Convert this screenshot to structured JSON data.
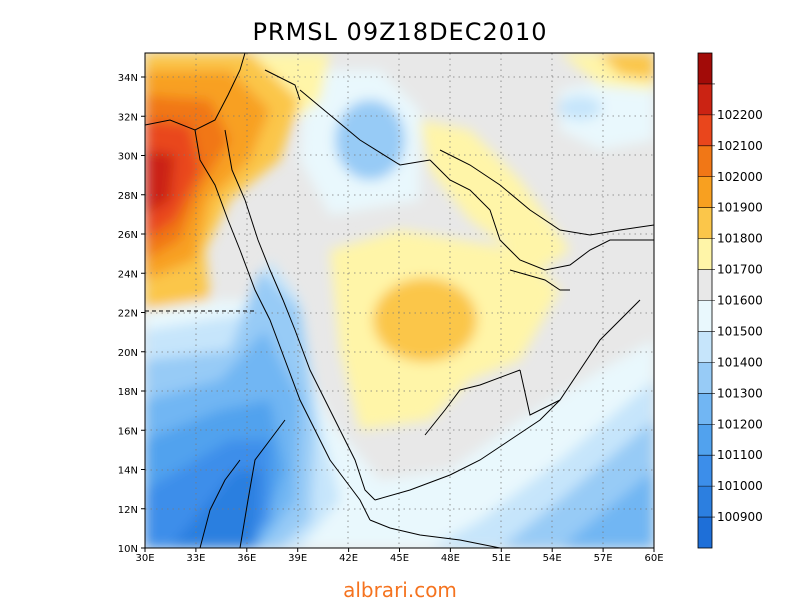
{
  "title": "PRMSL 09Z18DEC2010",
  "watermark": "albrari.com",
  "lat_ticks": [
    "10N",
    "12N",
    "14N",
    "16N",
    "18N",
    "20N",
    "22N",
    "24N",
    "26N",
    "28N",
    "30N",
    "32N",
    "34N"
  ],
  "lon_ticks": [
    "30E",
    "33E",
    "36E",
    "39E",
    "42E",
    "45E",
    "48E",
    "51E",
    "54E",
    "57E",
    "60E"
  ],
  "colorbar": [
    {
      "label": "",
      "color": "#1e6fd8"
    },
    {
      "label": "100900",
      "color": "#2c7fe0"
    },
    {
      "label": "101000",
      "color": "#3c8eea"
    },
    {
      "label": "101100",
      "color": "#51a2ee"
    },
    {
      "label": "101200",
      "color": "#71b6f3"
    },
    {
      "label": "101300",
      "color": "#97cbf6"
    },
    {
      "label": "101400",
      "color": "#c6e5fb"
    },
    {
      "label": "101500",
      "color": "#e9f8fd"
    },
    {
      "label": "101600",
      "color": "#e8e8e8"
    },
    {
      "label": "101700",
      "color": "#fff5a8"
    },
    {
      "label": "101800",
      "color": "#fbc64a"
    },
    {
      "label": "101900",
      "color": "#f8a020"
    },
    {
      "label": "102000",
      "color": "#f17716"
    },
    {
      "label": "102100",
      "color": "#e9461c"
    },
    {
      "label": "102200",
      "color": "#cb2313"
    },
    {
      "label": "",
      "color": "#a20b08"
    }
  ]
}
